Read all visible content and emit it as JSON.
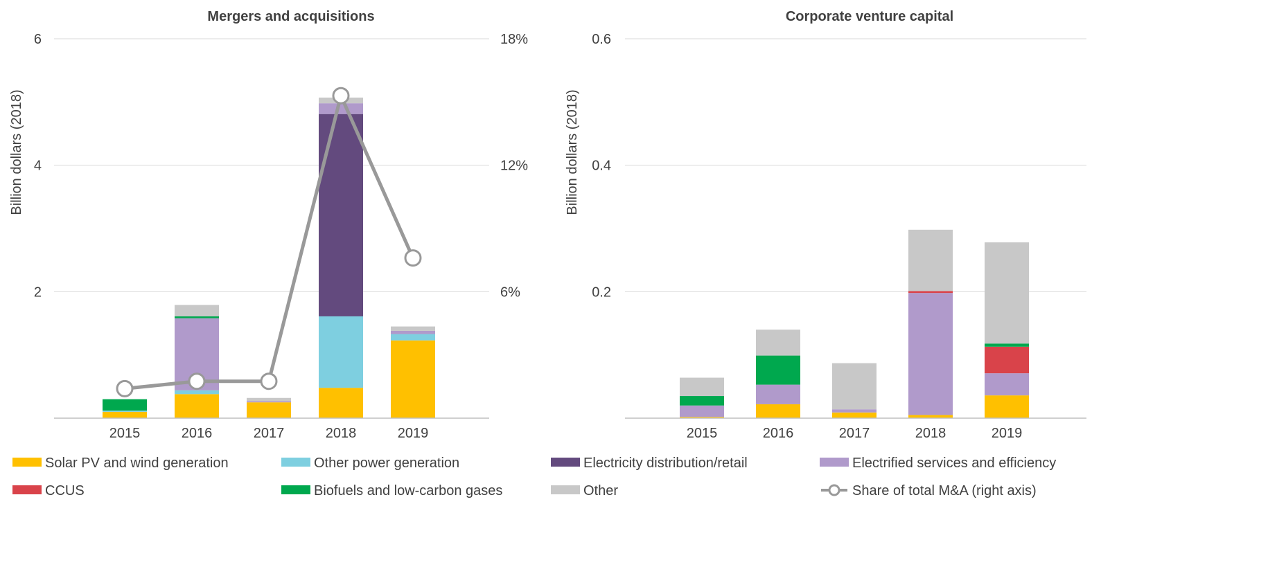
{
  "colors": {
    "solar_wind": "#FFC000",
    "other_power": "#7ECFE0",
    "elec_dist": "#634A7E",
    "elec_services": "#B09ACB",
    "ccus": "#D9434A",
    "biofuels": "#00A84E",
    "other": "#C8C8C8",
    "share_line": "#999999",
    "axis": "#BFBFBF",
    "grid": "#D9D9D9",
    "text": "#404040"
  },
  "legend": [
    {
      "key": "solar_wind",
      "label": "Solar PV and wind generation",
      "kind": "bar"
    },
    {
      "key": "other_power",
      "label": "Other power generation",
      "kind": "bar"
    },
    {
      "key": "elec_dist",
      "label": "Electricity distribution/retail",
      "kind": "bar"
    },
    {
      "key": "elec_services",
      "label": "Electrified services and efficiency",
      "kind": "bar"
    },
    {
      "key": "ccus",
      "label": "CCUS",
      "kind": "bar"
    },
    {
      "key": "biofuels",
      "label": "Biofuels and low-carbon gases",
      "kind": "bar"
    },
    {
      "key": "other",
      "label": "Other",
      "kind": "bar"
    },
    {
      "key": "share_line",
      "label": "Share of total M&A (right axis)",
      "kind": "line"
    }
  ],
  "chart_data": [
    {
      "id": "ma",
      "type": "bar",
      "stacked": true,
      "title": "Mergers and acquisitions",
      "ylabel": "Billion dollars (2018)",
      "ylim": [
        0,
        6
      ],
      "yticks": [
        2,
        4,
        6
      ],
      "ytick_labels": [
        "2",
        "4",
        "6"
      ],
      "y2lim": [
        0,
        0.18
      ],
      "y2ticks": [
        0.06,
        0.12,
        0.18
      ],
      "y2tick_labels": [
        "6%",
        "12%",
        "18%"
      ],
      "categories": [
        "2015",
        "2016",
        "2017",
        "2018",
        "2019"
      ],
      "series": [
        {
          "key": "solar_wind",
          "name": "Solar PV and wind generation",
          "values": [
            0.1,
            0.38,
            0.25,
            0.48,
            1.23
          ]
        },
        {
          "key": "other_power",
          "name": "Other power generation",
          "values": [
            0.02,
            0.06,
            0.0,
            1.13,
            0.1
          ]
        },
        {
          "key": "elec_dist",
          "name": "Electricity distribution/retail",
          "values": [
            0.0,
            0.0,
            0.0,
            3.2,
            0.0
          ]
        },
        {
          "key": "elec_services",
          "name": "Electrified services and efficiency",
          "values": [
            0.0,
            1.14,
            0.02,
            0.17,
            0.05
          ]
        },
        {
          "key": "ccus",
          "name": "CCUS",
          "values": [
            0.0,
            0.0,
            0.0,
            0.0,
            0.0
          ]
        },
        {
          "key": "biofuels",
          "name": "Biofuels and low-carbon gases",
          "values": [
            0.18,
            0.03,
            0.0,
            0.0,
            0.0
          ]
        },
        {
          "key": "other",
          "name": "Other",
          "values": [
            0.0,
            0.18,
            0.05,
            0.09,
            0.07
          ]
        }
      ],
      "line": {
        "key": "share_line",
        "name": "Share of total M&A (right axis)",
        "values": [
          0.014,
          0.0175,
          0.0175,
          0.153,
          0.076
        ]
      }
    },
    {
      "id": "cvc",
      "type": "bar",
      "stacked": true,
      "title": "Corporate venture capital",
      "ylabel": "Billion dollars (2018)",
      "ylim": [
        0,
        0.6
      ],
      "yticks": [
        0.2,
        0.4,
        0.6
      ],
      "ytick_labels": [
        "0.2",
        "0.4",
        "0.6"
      ],
      "categories": [
        "2015",
        "2016",
        "2017",
        "2018",
        "2019"
      ],
      "series": [
        {
          "key": "solar_wind",
          "name": "Solar PV and wind generation",
          "values": [
            0.002,
            0.022,
            0.009,
            0.005,
            0.036
          ]
        },
        {
          "key": "other_power",
          "name": "Other power generation",
          "values": [
            0.0,
            0.0,
            0.0,
            0.0,
            0.0
          ]
        },
        {
          "key": "elec_dist",
          "name": "Electricity distribution/retail",
          "values": [
            0.0,
            0.0,
            0.0,
            0.0,
            0.0
          ]
        },
        {
          "key": "elec_services",
          "name": "Electrified services and efficiency",
          "values": [
            0.018,
            0.031,
            0.005,
            0.193,
            0.035
          ]
        },
        {
          "key": "ccus",
          "name": "CCUS",
          "values": [
            0.0,
            0.0,
            0.0,
            0.003,
            0.042
          ]
        },
        {
          "key": "biofuels",
          "name": "Biofuels and low-carbon gases",
          "values": [
            0.015,
            0.046,
            0.0,
            0.0,
            0.005
          ]
        },
        {
          "key": "other",
          "name": "Other",
          "values": [
            0.029,
            0.041,
            0.073,
            0.097,
            0.16
          ]
        }
      ]
    }
  ]
}
